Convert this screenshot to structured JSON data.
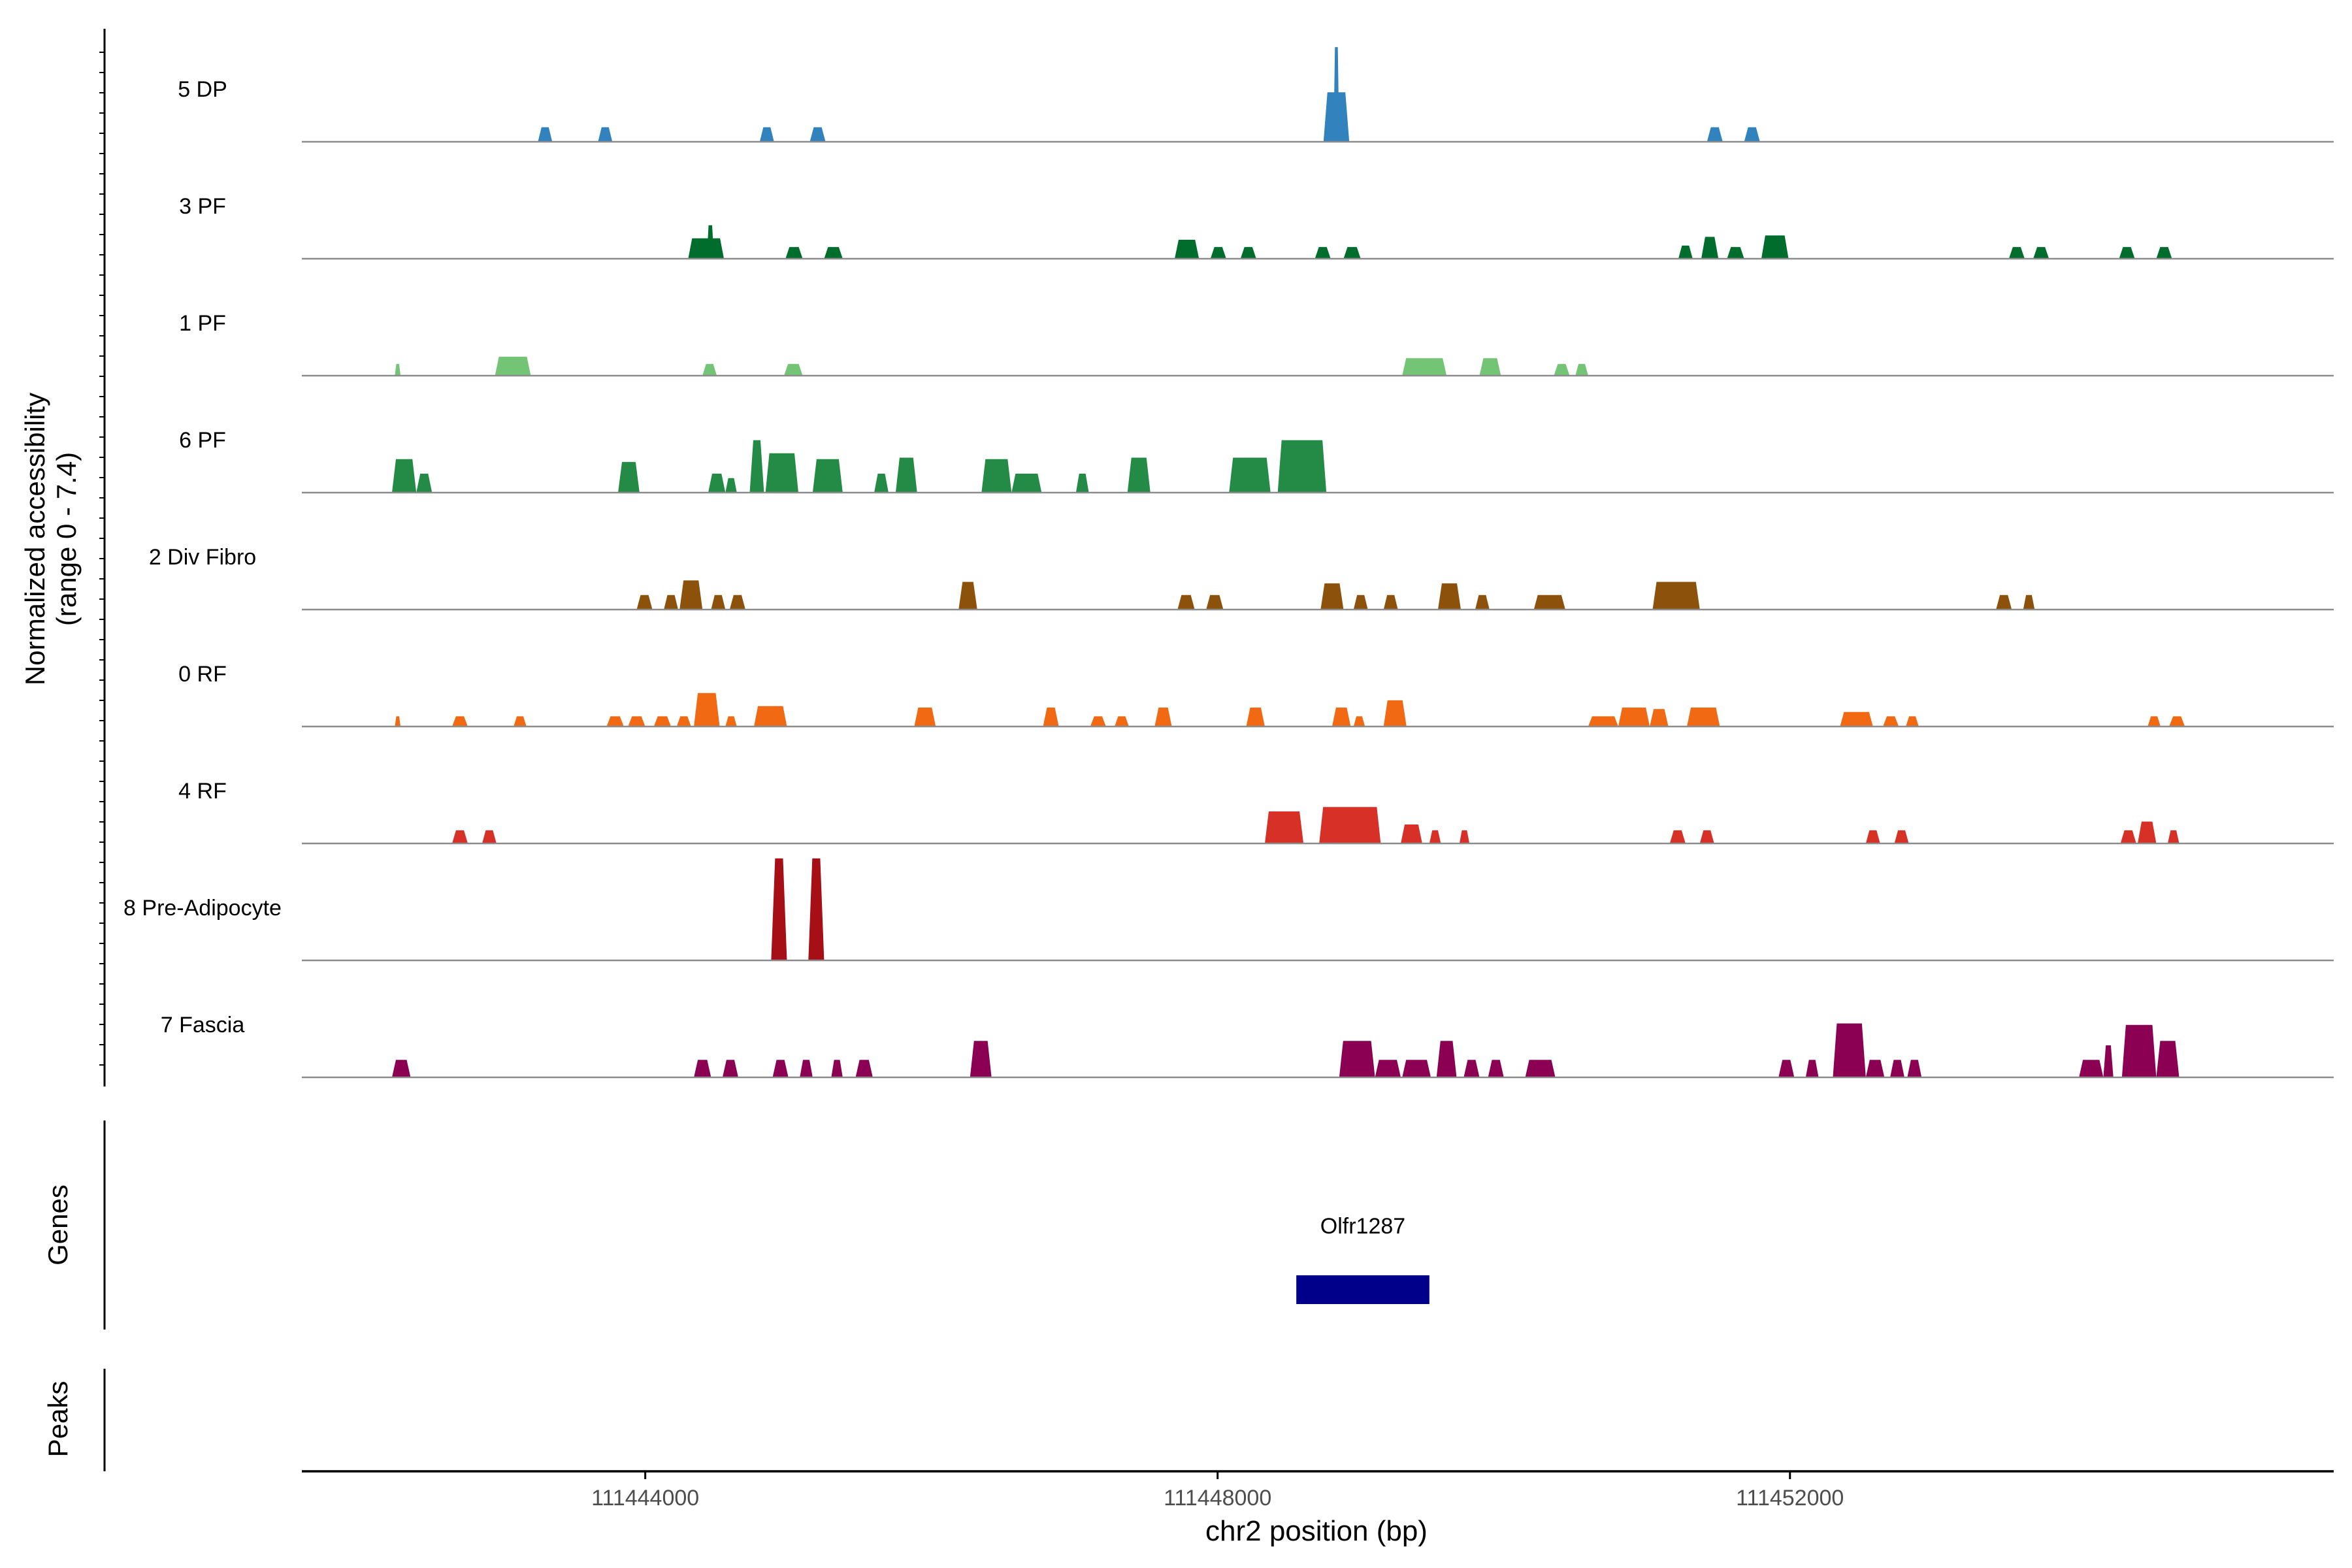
{
  "chart_data": {
    "type": "area",
    "title": "",
    "ylabel_line1": "Normalized accessibility",
    "ylabel_line2": "(range 0 - 7.4)",
    "xlabel": "chr2 position (bp)",
    "xlim": [
      111441600,
      111455800
    ],
    "xticks": [
      111444000,
      111448000,
      111452000
    ],
    "xtick_labels": [
      "111444000",
      "111448000",
      "111452000"
    ],
    "ymax": 7.4,
    "tracks": [
      {
        "name": "5 DP",
        "color": "#3182BD",
        "peaks": [
          {
            "start": 111443250,
            "end": 111443350,
            "height": 1.0
          },
          {
            "start": 111443670,
            "end": 111443770,
            "height": 1.0
          },
          {
            "start": 111444800,
            "end": 111444900,
            "height": 1.0
          },
          {
            "start": 111445150,
            "end": 111445260,
            "height": 1.0
          },
          {
            "start": 111448740,
            "end": 111448920,
            "height": 3.4
          },
          {
            "start": 111448810,
            "end": 111448850,
            "height": 6.5
          },
          {
            "start": 111451420,
            "end": 111451530,
            "height": 1.0
          },
          {
            "start": 111451680,
            "end": 111451790,
            "height": 1.0
          }
        ]
      },
      {
        "name": "3 PF",
        "color": "#006D2C",
        "peaks": [
          {
            "start": 111444300,
            "end": 111444550,
            "height": 1.4
          },
          {
            "start": 111444430,
            "end": 111444480,
            "height": 2.3
          },
          {
            "start": 111444980,
            "end": 111445100,
            "height": 0.8
          },
          {
            "start": 111445250,
            "end": 111445380,
            "height": 0.8
          },
          {
            "start": 111447700,
            "end": 111447870,
            "height": 1.3
          },
          {
            "start": 111447950,
            "end": 111448060,
            "height": 0.8
          },
          {
            "start": 111448160,
            "end": 111448270,
            "height": 0.8
          },
          {
            "start": 111448680,
            "end": 111448790,
            "height": 0.8
          },
          {
            "start": 111448880,
            "end": 111449000,
            "height": 0.8
          },
          {
            "start": 111451220,
            "end": 111451320,
            "height": 0.9
          },
          {
            "start": 111451380,
            "end": 111451500,
            "height": 1.5
          },
          {
            "start": 111451560,
            "end": 111451680,
            "height": 0.8
          },
          {
            "start": 111451800,
            "end": 111451990,
            "height": 1.6
          },
          {
            "start": 111453530,
            "end": 111453640,
            "height": 0.8
          },
          {
            "start": 111453700,
            "end": 111453810,
            "height": 0.8
          },
          {
            "start": 111454300,
            "end": 111454410,
            "height": 0.8
          },
          {
            "start": 111454560,
            "end": 111454670,
            "height": 0.8
          }
        ]
      },
      {
        "name": "1 PF",
        "color": "#74C476",
        "peaks": [
          {
            "start": 111442250,
            "end": 111442290,
            "height": 0.8
          },
          {
            "start": 111442950,
            "end": 111443200,
            "height": 1.3
          },
          {
            "start": 111444400,
            "end": 111444500,
            "height": 0.8
          },
          {
            "start": 111444970,
            "end": 111445100,
            "height": 0.8
          },
          {
            "start": 111449290,
            "end": 111449600,
            "height": 1.2
          },
          {
            "start": 111449830,
            "end": 111449980,
            "height": 1.2
          },
          {
            "start": 111450350,
            "end": 111450460,
            "height": 0.8
          },
          {
            "start": 111450500,
            "end": 111450590,
            "height": 0.8
          }
        ]
      },
      {
        "name": "6 PF",
        "color": "#238B45",
        "peaks": [
          {
            "start": 111442230,
            "end": 111442400,
            "height": 2.3
          },
          {
            "start": 111442400,
            "end": 111442510,
            "height": 1.3
          },
          {
            "start": 111443810,
            "end": 111443960,
            "height": 2.1
          },
          {
            "start": 111444440,
            "end": 111444560,
            "height": 1.3
          },
          {
            "start": 111444560,
            "end": 111444640,
            "height": 1.0
          },
          {
            "start": 111444730,
            "end": 111444830,
            "height": 3.6
          },
          {
            "start": 111444840,
            "end": 111445070,
            "height": 2.7
          },
          {
            "start": 111445170,
            "end": 111445380,
            "height": 2.3
          },
          {
            "start": 111445600,
            "end": 111445700,
            "height": 1.3
          },
          {
            "start": 111445750,
            "end": 111445900,
            "height": 2.4
          },
          {
            "start": 111446350,
            "end": 111446560,
            "height": 2.3
          },
          {
            "start": 111446560,
            "end": 111446770,
            "height": 1.3
          },
          {
            "start": 111447010,
            "end": 111447100,
            "height": 1.3
          },
          {
            "start": 111447370,
            "end": 111447530,
            "height": 2.4
          },
          {
            "start": 111448080,
            "end": 111448370,
            "height": 2.4
          },
          {
            "start": 111448420,
            "end": 111448760,
            "height": 3.6
          }
        ]
      },
      {
        "name": "2 Div Fibro",
        "color": "#8C510A",
        "peaks": [
          {
            "start": 111443940,
            "end": 111444050,
            "height": 1.0
          },
          {
            "start": 111444130,
            "end": 111444230,
            "height": 1.0
          },
          {
            "start": 111444240,
            "end": 111444400,
            "height": 2.0
          },
          {
            "start": 111444460,
            "end": 111444560,
            "height": 1.0
          },
          {
            "start": 111444590,
            "end": 111444700,
            "height": 1.0
          },
          {
            "start": 111446190,
            "end": 111446320,
            "height": 1.9
          },
          {
            "start": 111447720,
            "end": 111447840,
            "height": 1.0
          },
          {
            "start": 111447920,
            "end": 111448040,
            "height": 1.0
          },
          {
            "start": 111448720,
            "end": 111448880,
            "height": 1.8
          },
          {
            "start": 111448950,
            "end": 111449050,
            "height": 1.0
          },
          {
            "start": 111449160,
            "end": 111449260,
            "height": 1.0
          },
          {
            "start": 111449540,
            "end": 111449700,
            "height": 1.8
          },
          {
            "start": 111449800,
            "end": 111449900,
            "height": 1.0
          },
          {
            "start": 111450210,
            "end": 111450430,
            "height": 1.0
          },
          {
            "start": 111451040,
            "end": 111451370,
            "height": 1.9
          },
          {
            "start": 111453440,
            "end": 111453550,
            "height": 1.0
          },
          {
            "start": 111453630,
            "end": 111453710,
            "height": 1.0
          }
        ]
      },
      {
        "name": "0 RF",
        "color": "#F16913",
        "peaks": [
          {
            "start": 111442250,
            "end": 111442290,
            "height": 0.7
          },
          {
            "start": 111442650,
            "end": 111442760,
            "height": 0.7
          },
          {
            "start": 111443080,
            "end": 111443170,
            "height": 0.7
          },
          {
            "start": 111443730,
            "end": 111443850,
            "height": 0.7
          },
          {
            "start": 111443880,
            "end": 111444000,
            "height": 0.7
          },
          {
            "start": 111444060,
            "end": 111444180,
            "height": 0.7
          },
          {
            "start": 111444220,
            "end": 111444320,
            "height": 0.7
          },
          {
            "start": 111444340,
            "end": 111444520,
            "height": 2.3
          },
          {
            "start": 111444560,
            "end": 111444640,
            "height": 0.7
          },
          {
            "start": 111444760,
            "end": 111444990,
            "height": 1.4
          },
          {
            "start": 111445880,
            "end": 111446030,
            "height": 1.3
          },
          {
            "start": 111446780,
            "end": 111446890,
            "height": 1.3
          },
          {
            "start": 111447110,
            "end": 111447220,
            "height": 0.7
          },
          {
            "start": 111447280,
            "end": 111447380,
            "height": 0.7
          },
          {
            "start": 111447560,
            "end": 111447680,
            "height": 1.3
          },
          {
            "start": 111448200,
            "end": 111448330,
            "height": 1.3
          },
          {
            "start": 111448800,
            "end": 111448930,
            "height": 1.3
          },
          {
            "start": 111448950,
            "end": 111449030,
            "height": 0.7
          },
          {
            "start": 111449160,
            "end": 111449320,
            "height": 1.8
          },
          {
            "start": 111450590,
            "end": 111450800,
            "height": 0.7
          },
          {
            "start": 111450800,
            "end": 111451020,
            "height": 1.3
          },
          {
            "start": 111451020,
            "end": 111451150,
            "height": 1.2
          },
          {
            "start": 111451280,
            "end": 111451510,
            "height": 1.3
          },
          {
            "start": 111452350,
            "end": 111452580,
            "height": 1.0
          },
          {
            "start": 111452650,
            "end": 111452760,
            "height": 0.7
          },
          {
            "start": 111452810,
            "end": 111452900,
            "height": 0.7
          },
          {
            "start": 111454500,
            "end": 111454590,
            "height": 0.7
          },
          {
            "start": 111454650,
            "end": 111454760,
            "height": 0.7
          }
        ]
      },
      {
        "name": "4 RF",
        "color": "#D73027",
        "peaks": [
          {
            "start": 111442650,
            "end": 111442760,
            "height": 0.9
          },
          {
            "start": 111442860,
            "end": 111442960,
            "height": 0.9
          },
          {
            "start": 111448330,
            "end": 111448600,
            "height": 2.2
          },
          {
            "start": 111448710,
            "end": 111449140,
            "height": 2.5
          },
          {
            "start": 111449280,
            "end": 111449430,
            "height": 1.3
          },
          {
            "start": 111449480,
            "end": 111449560,
            "height": 0.9
          },
          {
            "start": 111449690,
            "end": 111449760,
            "height": 0.9
          },
          {
            "start": 111451160,
            "end": 111451270,
            "height": 0.9
          },
          {
            "start": 111451370,
            "end": 111451470,
            "height": 0.9
          },
          {
            "start": 111452530,
            "end": 111452630,
            "height": 0.9
          },
          {
            "start": 111452730,
            "end": 111452830,
            "height": 0.9
          },
          {
            "start": 111454310,
            "end": 111454420,
            "height": 0.9
          },
          {
            "start": 111454430,
            "end": 111454560,
            "height": 1.5
          },
          {
            "start": 111454640,
            "end": 111454720,
            "height": 0.9
          }
        ]
      },
      {
        "name": "8 Pre-Adipocyte",
        "color": "#A50F15",
        "peaks": [
          {
            "start": 111444880,
            "end": 111444990,
            "height": 7.0
          },
          {
            "start": 111445140,
            "end": 111445250,
            "height": 7.0
          }
        ]
      },
      {
        "name": "7 Fascia",
        "color": "#8B0052",
        "peaks": [
          {
            "start": 111442230,
            "end": 111442360,
            "height": 1.2
          },
          {
            "start": 111444340,
            "end": 111444460,
            "height": 1.2
          },
          {
            "start": 111444540,
            "end": 111444650,
            "height": 1.2
          },
          {
            "start": 111444890,
            "end": 111445000,
            "height": 1.2
          },
          {
            "start": 111445080,
            "end": 111445170,
            "height": 1.2
          },
          {
            "start": 111445300,
            "end": 111445380,
            "height": 1.2
          },
          {
            "start": 111445470,
            "end": 111445590,
            "height": 1.2
          },
          {
            "start": 111446270,
            "end": 111446420,
            "height": 2.5
          },
          {
            "start": 111448850,
            "end": 111449100,
            "height": 2.5
          },
          {
            "start": 111449100,
            "end": 111449280,
            "height": 1.2
          },
          {
            "start": 111449290,
            "end": 111449490,
            "height": 1.2
          },
          {
            "start": 111449530,
            "end": 111449670,
            "height": 2.5
          },
          {
            "start": 111449720,
            "end": 111449830,
            "height": 1.2
          },
          {
            "start": 111449890,
            "end": 111450000,
            "height": 1.2
          },
          {
            "start": 111450150,
            "end": 111450360,
            "height": 1.2
          },
          {
            "start": 111451920,
            "end": 111452030,
            "height": 1.2
          },
          {
            "start": 111452110,
            "end": 111452200,
            "height": 1.2
          },
          {
            "start": 111452300,
            "end": 111452530,
            "height": 3.7
          },
          {
            "start": 111452530,
            "end": 111452660,
            "height": 1.2
          },
          {
            "start": 111452700,
            "end": 111452800,
            "height": 1.2
          },
          {
            "start": 111452820,
            "end": 111452920,
            "height": 1.2
          },
          {
            "start": 111454020,
            "end": 111454190,
            "height": 1.2
          },
          {
            "start": 111454190,
            "end": 111454260,
            "height": 2.2
          },
          {
            "start": 111454320,
            "end": 111454560,
            "height": 3.6
          },
          {
            "start": 111454560,
            "end": 111454720,
            "height": 2.5
          }
        ]
      }
    ],
    "genes": [
      {
        "name": "Olfr1287",
        "start": 111448550,
        "end": 111449480,
        "color": "#00008B"
      }
    ],
    "gene_track_label": "Genes",
    "peaks_track_label": "Peaks"
  }
}
